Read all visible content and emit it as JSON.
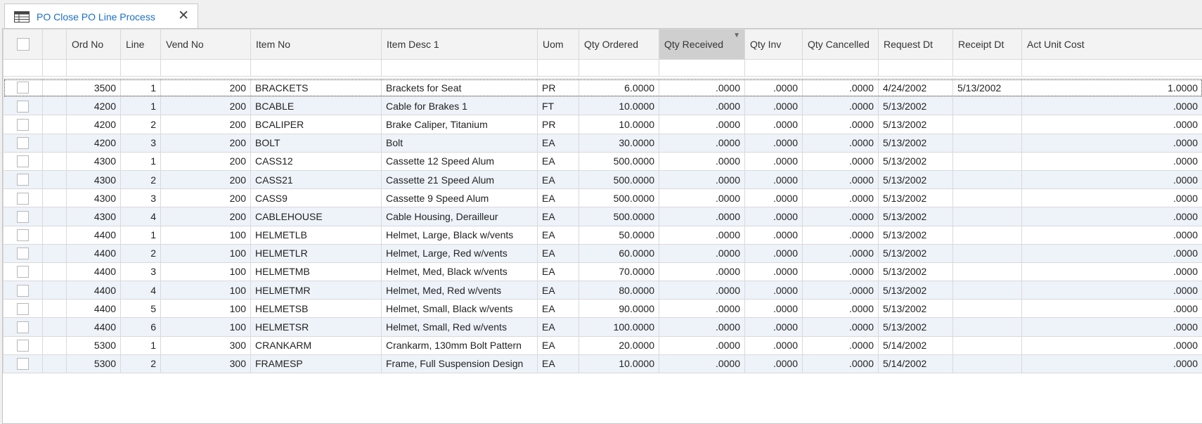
{
  "tab": {
    "title": "PO Close PO Line Process",
    "icon": "grid-icon"
  },
  "columns": [
    "",
    "",
    "Ord No",
    "Line",
    "Vend No",
    "Item No",
    "Item Desc 1",
    "Uom",
    "Qty Ordered",
    "Qty Received",
    "Qty Inv",
    "Qty Cancelled",
    "Request Dt",
    "Receipt Dt",
    "Act Unit Cost"
  ],
  "rows": [
    {
      "ord": "3500",
      "line": "1",
      "vend": "200",
      "item": "BRACKETS",
      "desc": "Brackets for Seat",
      "uom": "PR",
      "qty_ord": "6.0000",
      "qty_rec": ".0000",
      "qty_inv": ".0000",
      "qty_can": ".0000",
      "req_dt": "4/24/2002",
      "rec_dt": "5/13/2002",
      "cost": "1.0000"
    },
    {
      "ord": "4200",
      "line": "1",
      "vend": "200",
      "item": "BCABLE",
      "desc": "Cable for Brakes 1",
      "uom": "FT",
      "qty_ord": "10.0000",
      "qty_rec": ".0000",
      "qty_inv": ".0000",
      "qty_can": ".0000",
      "req_dt": "5/13/2002",
      "rec_dt": "",
      "cost": ".0000"
    },
    {
      "ord": "4200",
      "line": "2",
      "vend": "200",
      "item": "BCALIPER",
      "desc": "Brake Caliper, Titanium",
      "uom": "PR",
      "qty_ord": "10.0000",
      "qty_rec": ".0000",
      "qty_inv": ".0000",
      "qty_can": ".0000",
      "req_dt": "5/13/2002",
      "rec_dt": "",
      "cost": ".0000"
    },
    {
      "ord": "4200",
      "line": "3",
      "vend": "200",
      "item": "BOLT",
      "desc": "Bolt",
      "uom": "EA",
      "qty_ord": "30.0000",
      "qty_rec": ".0000",
      "qty_inv": ".0000",
      "qty_can": ".0000",
      "req_dt": "5/13/2002",
      "rec_dt": "",
      "cost": ".0000"
    },
    {
      "ord": "4300",
      "line": "1",
      "vend": "200",
      "item": "CASS12",
      "desc": "Cassette 12 Speed Alum",
      "uom": "EA",
      "qty_ord": "500.0000",
      "qty_rec": ".0000",
      "qty_inv": ".0000",
      "qty_can": ".0000",
      "req_dt": "5/13/2002",
      "rec_dt": "",
      "cost": ".0000"
    },
    {
      "ord": "4300",
      "line": "2",
      "vend": "200",
      "item": "CASS21",
      "desc": "Cassette 21 Speed Alum",
      "uom": "EA",
      "qty_ord": "500.0000",
      "qty_rec": ".0000",
      "qty_inv": ".0000",
      "qty_can": ".0000",
      "req_dt": "5/13/2002",
      "rec_dt": "",
      "cost": ".0000"
    },
    {
      "ord": "4300",
      "line": "3",
      "vend": "200",
      "item": "CASS9",
      "desc": "Cassette 9 Speed Alum",
      "uom": "EA",
      "qty_ord": "500.0000",
      "qty_rec": ".0000",
      "qty_inv": ".0000",
      "qty_can": ".0000",
      "req_dt": "5/13/2002",
      "rec_dt": "",
      "cost": ".0000"
    },
    {
      "ord": "4300",
      "line": "4",
      "vend": "200",
      "item": "CABLEHOUSE",
      "desc": "Cable Housing, Derailleur",
      "uom": "EA",
      "qty_ord": "500.0000",
      "qty_rec": ".0000",
      "qty_inv": ".0000",
      "qty_can": ".0000",
      "req_dt": "5/13/2002",
      "rec_dt": "",
      "cost": ".0000"
    },
    {
      "ord": "4400",
      "line": "1",
      "vend": "100",
      "item": "HELMETLB",
      "desc": "Helmet, Large, Black w/vents",
      "uom": "EA",
      "qty_ord": "50.0000",
      "qty_rec": ".0000",
      "qty_inv": ".0000",
      "qty_can": ".0000",
      "req_dt": "5/13/2002",
      "rec_dt": "",
      "cost": ".0000"
    },
    {
      "ord": "4400",
      "line": "2",
      "vend": "100",
      "item": "HELMETLR",
      "desc": "Helmet, Large, Red w/vents",
      "uom": "EA",
      "qty_ord": "60.0000",
      "qty_rec": ".0000",
      "qty_inv": ".0000",
      "qty_can": ".0000",
      "req_dt": "5/13/2002",
      "rec_dt": "",
      "cost": ".0000"
    },
    {
      "ord": "4400",
      "line": "3",
      "vend": "100",
      "item": "HELMETMB",
      "desc": "Helmet, Med, Black w/vents",
      "uom": "EA",
      "qty_ord": "70.0000",
      "qty_rec": ".0000",
      "qty_inv": ".0000",
      "qty_can": ".0000",
      "req_dt": "5/13/2002",
      "rec_dt": "",
      "cost": ".0000"
    },
    {
      "ord": "4400",
      "line": "4",
      "vend": "100",
      "item": "HELMETMR",
      "desc": "Helmet, Med, Red w/vents",
      "uom": "EA",
      "qty_ord": "80.0000",
      "qty_rec": ".0000",
      "qty_inv": ".0000",
      "qty_can": ".0000",
      "req_dt": "5/13/2002",
      "rec_dt": "",
      "cost": ".0000"
    },
    {
      "ord": "4400",
      "line": "5",
      "vend": "100",
      "item": "HELMETSB",
      "desc": "Helmet, Small, Black w/vents",
      "uom": "EA",
      "qty_ord": "90.0000",
      "qty_rec": ".0000",
      "qty_inv": ".0000",
      "qty_can": ".0000",
      "req_dt": "5/13/2002",
      "rec_dt": "",
      "cost": ".0000"
    },
    {
      "ord": "4400",
      "line": "6",
      "vend": "100",
      "item": "HELMETSR",
      "desc": "Helmet, Small, Red w/vents",
      "uom": "EA",
      "qty_ord": "100.0000",
      "qty_rec": ".0000",
      "qty_inv": ".0000",
      "qty_can": ".0000",
      "req_dt": "5/13/2002",
      "rec_dt": "",
      "cost": ".0000"
    },
    {
      "ord": "5300",
      "line": "1",
      "vend": "300",
      "item": "CRANKARM",
      "desc": "Crankarm, 130mm Bolt Pattern",
      "uom": "EA",
      "qty_ord": "20.0000",
      "qty_rec": ".0000",
      "qty_inv": ".0000",
      "qty_can": ".0000",
      "req_dt": "5/14/2002",
      "rec_dt": "",
      "cost": ".0000"
    },
    {
      "ord": "5300",
      "line": "2",
      "vend": "300",
      "item": "FRAMESP",
      "desc": "Frame, Full Suspension Design",
      "uom": "EA",
      "qty_ord": "10.0000",
      "qty_rec": ".0000",
      "qty_inv": ".0000",
      "qty_can": ".0000",
      "req_dt": "5/14/2002",
      "rec_dt": "",
      "cost": ".0000"
    }
  ],
  "colors": {
    "accent": "#1a6fc7",
    "alt_row": "#eef3fa",
    "sorted_header": "#cfcfcf"
  }
}
